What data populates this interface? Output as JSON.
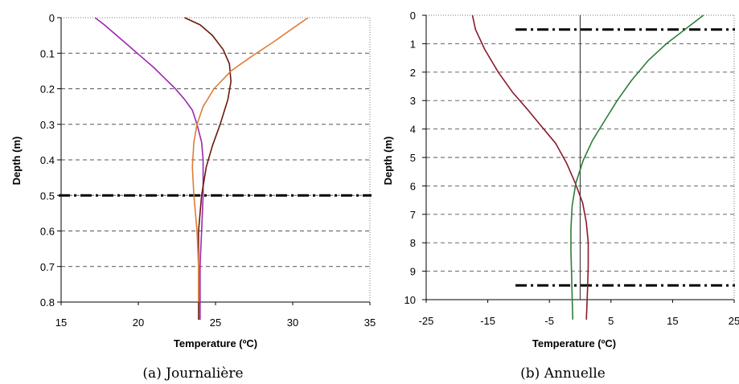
{
  "chart_data": [
    {
      "type": "line",
      "caption": "(a) Journalière",
      "xlabel": "Temperature (ºC)",
      "ylabel": "Depth (m)",
      "xlim": [
        15,
        35
      ],
      "ylim": [
        0,
        0.8
      ],
      "y_inverted": true,
      "x_ticks": [
        "15",
        "20",
        "25",
        "30",
        "35"
      ],
      "y_ticks": [
        "0",
        "0.1",
        "0.2",
        "0.3",
        "0.4",
        "0.5",
        "0.6",
        "0.7",
        "0.8"
      ],
      "grid": "horizontal dashed",
      "reference_lines": [
        0.5
      ],
      "series": [
        {
          "color": "#9c27b0",
          "x": [
            17.2,
            17.8,
            18.6,
            19.4,
            20.2,
            21.0,
            21.7,
            22.4,
            23.0,
            23.5,
            23.8,
            24.1,
            24.2,
            24.2,
            24.1,
            24.0,
            24.0,
            24.0
          ],
          "y": [
            0.0,
            0.02,
            0.05,
            0.08,
            0.11,
            0.14,
            0.17,
            0.2,
            0.23,
            0.26,
            0.3,
            0.35,
            0.4,
            0.5,
            0.6,
            0.7,
            0.8,
            0.85
          ]
        },
        {
          "color": "#6b1a0a",
          "x": [
            23.0,
            24.0,
            24.8,
            25.5,
            25.9,
            26.0,
            25.8,
            25.3,
            24.8,
            24.4,
            24.1,
            23.9,
            23.9,
            23.9,
            23.9
          ],
          "y": [
            0.0,
            0.02,
            0.05,
            0.09,
            0.13,
            0.18,
            0.23,
            0.3,
            0.36,
            0.42,
            0.5,
            0.6,
            0.7,
            0.8,
            0.85
          ]
        },
        {
          "color": "#e07b39",
          "x": [
            31.0,
            30.0,
            28.7,
            27.3,
            26.0,
            24.9,
            24.2,
            23.8,
            23.6,
            23.5,
            23.6,
            23.8,
            23.9,
            23.9
          ],
          "y": [
            0.0,
            0.03,
            0.07,
            0.11,
            0.15,
            0.2,
            0.25,
            0.3,
            0.35,
            0.42,
            0.5,
            0.6,
            0.7,
            0.8
          ]
        }
      ]
    },
    {
      "type": "line",
      "caption": "(b) Annuelle",
      "xlabel": "Temperature (ºC)",
      "ylabel": "Depth (m)",
      "xlim": [
        -25,
        25
      ],
      "ylim": [
        0,
        10
      ],
      "y_inverted": true,
      "x_ticks": [
        "-25",
        "-15",
        "-5",
        "5",
        "15",
        "25"
      ],
      "y_ticks": [
        "0",
        "1",
        "2",
        "3",
        "4",
        "5",
        "6",
        "7",
        "8",
        "9",
        "10"
      ],
      "grid": "horizontal dashed",
      "reference_lines": [
        0.5,
        9.5
      ],
      "vertical_reference": 0,
      "series": [
        {
          "color": "#8b1a2b",
          "x": [
            -17.5,
            -17.0,
            -15.5,
            -13.3,
            -11.0,
            -8.6,
            -6.3,
            -4.0,
            -2.2,
            -0.8,
            0.4,
            1.0,
            1.3,
            1.3,
            1.2,
            1.0
          ],
          "y": [
            0.0,
            0.5,
            1.2,
            2.0,
            2.7,
            3.3,
            3.9,
            4.5,
            5.2,
            5.9,
            6.6,
            7.3,
            8.0,
            8.8,
            9.6,
            10.7
          ]
        },
        {
          "color": "#2e7d3a",
          "x": [
            20.0,
            17.0,
            14.0,
            11.0,
            8.3,
            6.0,
            4.0,
            2.0,
            0.5,
            -0.7,
            -1.3,
            -1.5,
            -1.5,
            -1.4,
            -1.3,
            -1.2
          ],
          "y": [
            0.0,
            0.5,
            1.0,
            1.6,
            2.3,
            3.0,
            3.7,
            4.4,
            5.1,
            5.9,
            6.7,
            7.5,
            8.3,
            9.1,
            9.9,
            10.7
          ]
        }
      ]
    }
  ]
}
